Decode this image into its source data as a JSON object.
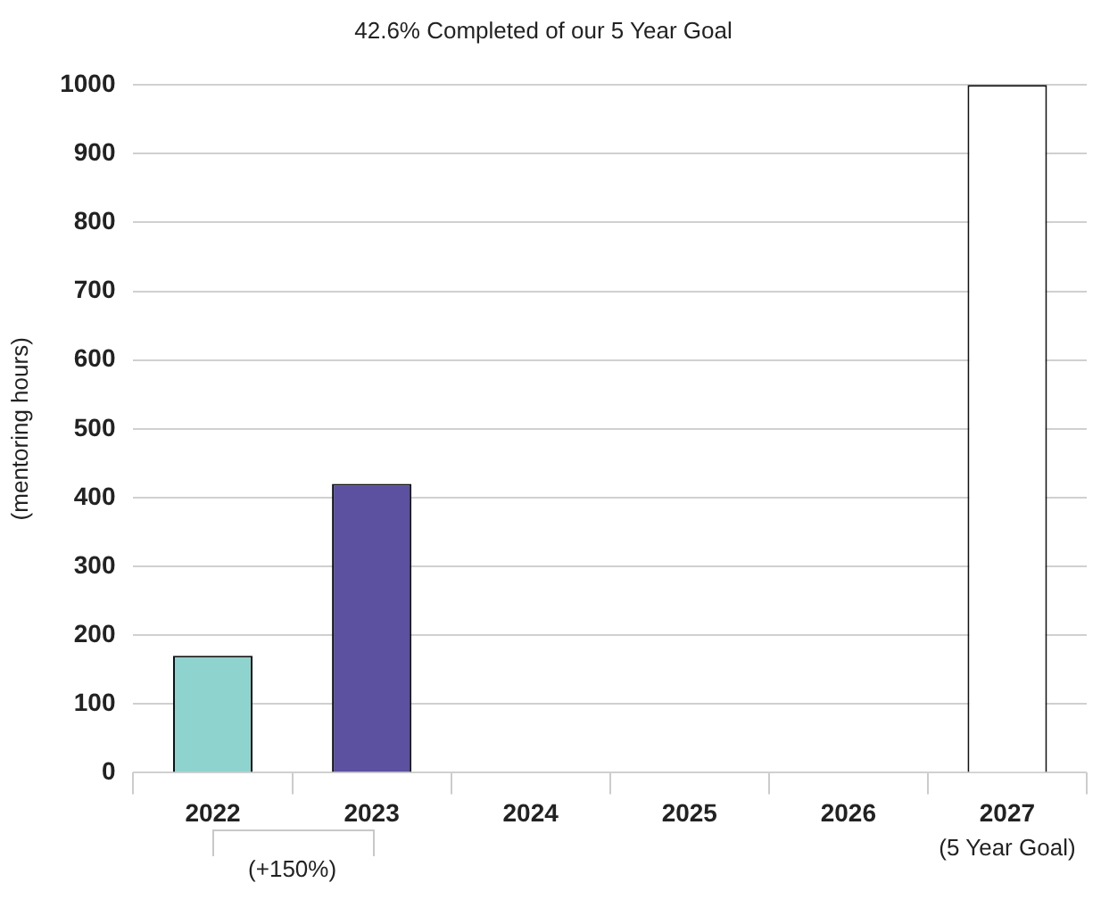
{
  "chart_data": {
    "type": "bar",
    "title": "42.6% Completed of our 5 Year Goal",
    "ylabel": "(mentoring hours)",
    "categories": [
      "2022",
      "2023",
      "2024",
      "2025",
      "2026",
      "2027"
    ],
    "values": [
      170,
      420,
      null,
      null,
      null,
      1000
    ],
    "colors": [
      "#8fd3cf",
      "#5b51a0",
      "#ffffff",
      "#ffffff",
      "#ffffff",
      "#ffffff"
    ],
    "ylim": [
      0,
      1000
    ],
    "yticks": [
      0,
      100,
      200,
      300,
      400,
      500,
      600,
      700,
      800,
      900,
      1000
    ],
    "grid": "y",
    "legend": false,
    "annotations": [
      "(+150%)",
      "(5 Year Goal)"
    ]
  }
}
